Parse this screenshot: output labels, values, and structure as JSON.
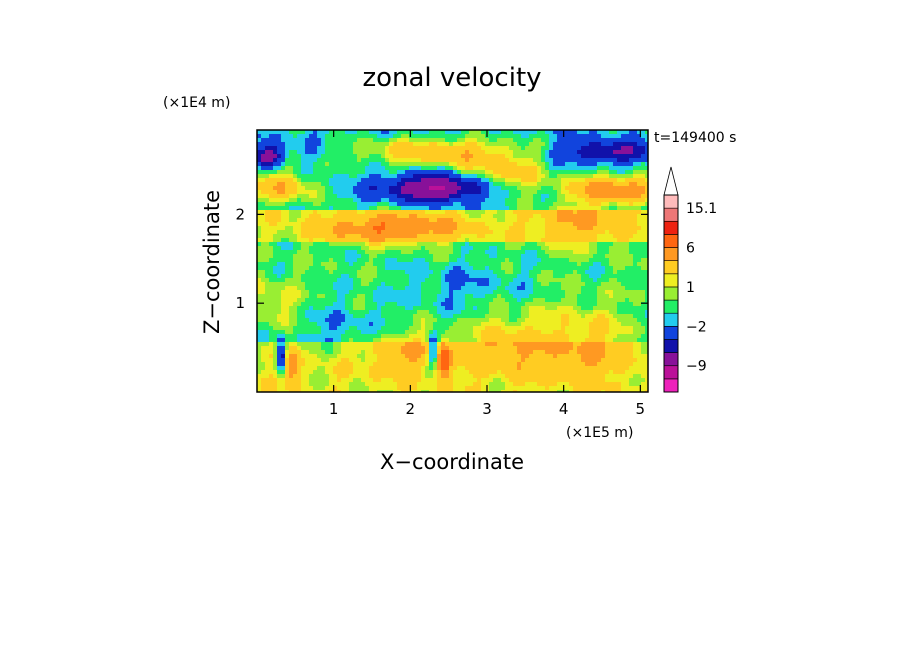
{
  "chart_data": {
    "type": "heatmap",
    "title": "zonal velocity",
    "xlabel": "X−coordinate",
    "ylabel": "Z−coordinate",
    "x_multiplier": "(×1E5 m)",
    "y_multiplier": "(×1E4 m)",
    "time_label": "t=149400 s",
    "xlim": [
      0,
      5.1
    ],
    "ylim": [
      0,
      2.95
    ],
    "x_ticks": [
      {
        "value": 1,
        "label": "1"
      },
      {
        "value": 2,
        "label": "2"
      },
      {
        "value": 3,
        "label": "3"
      },
      {
        "value": 4,
        "label": "4"
      },
      {
        "value": 5,
        "label": "5"
      }
    ],
    "y_ticks": [
      {
        "value": 1,
        "label": "1"
      },
      {
        "value": 2,
        "label": "2"
      }
    ],
    "colorbar": {
      "levels": [
        -15,
        -12,
        -9,
        -6,
        -4,
        -2,
        -1,
        0,
        1,
        2,
        4,
        6,
        9,
        12,
        15.1
      ],
      "colors": [
        "#ee22bb",
        "#bb1199",
        "#881199",
        "#1111aa",
        "#1144dd",
        "#22ccee",
        "#22ee66",
        "#99ee33",
        "#eeee22",
        "#ffcc22",
        "#ff9922",
        "#ff6611",
        "#ee2211",
        "#ee7777",
        "#ffbbbb"
      ],
      "extend": "max",
      "tick_labels": [
        {
          "value": 15.1,
          "label": "15.1"
        },
        {
          "value": 6,
          "label": "6"
        },
        {
          "value": 1,
          "label": "1"
        },
        {
          "value": -2,
          "label": "−2"
        },
        {
          "value": -9,
          "label": "−9"
        }
      ]
    },
    "features": [
      {
        "x": 0.15,
        "z": 2.65,
        "u": -7,
        "sx": 0.12,
        "sz": 0.08
      },
      {
        "x": 2.35,
        "z": 2.3,
        "u": -8,
        "sx": 0.45,
        "sz": 0.1
      },
      {
        "x": 4.55,
        "z": 2.7,
        "u": -5,
        "sx": 0.45,
        "sz": 0.08
      },
      {
        "x": 0.3,
        "z": 2.3,
        "u": 5,
        "sx": 0.35,
        "sz": 0.14
      },
      {
        "x": 2.35,
        "z": 2.7,
        "u": 5,
        "sx": 0.75,
        "sz": 0.12
      },
      {
        "x": 4.7,
        "z": 2.28,
        "u": 7,
        "sx": 0.45,
        "sz": 0.12
      },
      {
        "x": 3.25,
        "z": 2.45,
        "u": 4,
        "sx": 0.4,
        "sz": 0.16
      },
      {
        "x": 2.1,
        "z": 1.85,
        "u": 4,
        "sx": 0.5,
        "sz": 0.12
      },
      {
        "x": 4.2,
        "z": 1.9,
        "u": 3,
        "sx": 0.45,
        "sz": 0.2
      },
      {
        "x": 1.3,
        "z": 1.85,
        "u": 3,
        "sx": 0.45,
        "sz": 0.12
      },
      {
        "x": 3.3,
        "z": 0.55,
        "u": 3,
        "sx": 0.4,
        "sz": 0.25
      },
      {
        "x": 4.3,
        "z": 0.55,
        "u": 3,
        "sx": 0.4,
        "sz": 0.3
      },
      {
        "x": 1.3,
        "z": 0.7,
        "u": -1.5,
        "sx": 0.6,
        "sz": 0.2
      },
      {
        "x": 2.7,
        "z": 1.2,
        "u": -1.5,
        "sx": 0.55,
        "sz": 0.2
      },
      {
        "x": 1.9,
        "z": 0.5,
        "u": 3,
        "sx": 0.35,
        "sz": 0.2
      },
      {
        "x": 0.32,
        "z": 0.4,
        "u": -8,
        "sx": 0.05,
        "sz": 0.12
      },
      {
        "x": 0.45,
        "z": 0.3,
        "u": 5,
        "sx": 0.07,
        "sz": 0.15
      },
      {
        "x": 2.3,
        "z": 0.45,
        "u": -6,
        "sx": 0.05,
        "sz": 0.12
      },
      {
        "x": 2.43,
        "z": 0.35,
        "u": 6,
        "sx": 0.07,
        "sz": 0.15
      },
      {
        "x": 0.2,
        "z": 1.0,
        "u": 2,
        "sx": 0.25,
        "sz": 0.2
      }
    ]
  }
}
